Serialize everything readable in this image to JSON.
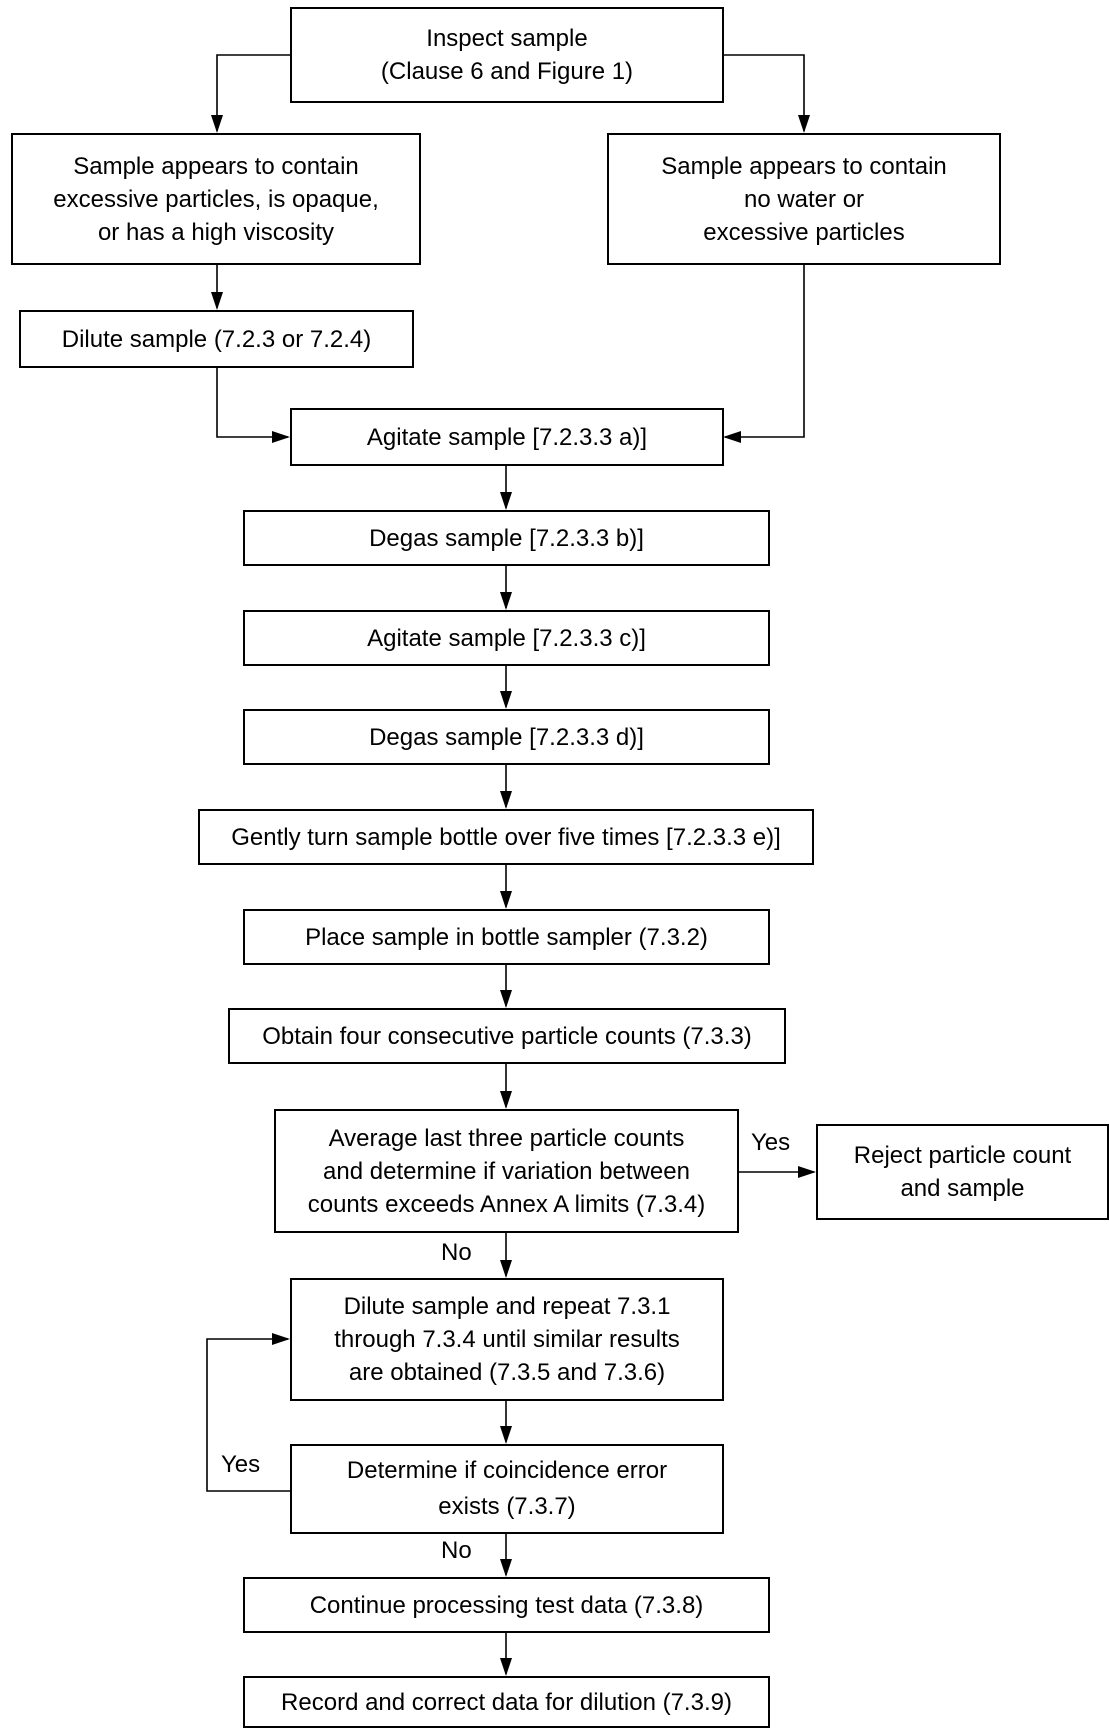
{
  "steps": {
    "inspect": [
      "Inspect sample",
      "(Clause 6 and Figure 1)"
    ],
    "excessive": [
      "Sample appears to contain",
      "excessive particles, is opaque,",
      "or has a high viscosity"
    ],
    "no_water": [
      "Sample appears to contain",
      "no water or",
      "excessive particles"
    ],
    "dilute": [
      "Dilute sample (7.2.3 or 7.2.4)"
    ],
    "agitate_a": [
      "Agitate sample [7.2.3.3 a)]"
    ],
    "degas_b": [
      "Degas sample [7.2.3.3 b)]"
    ],
    "agitate_c": [
      "Agitate sample [7.2.3.3 c)]"
    ],
    "degas_d": [
      "Degas sample [7.2.3.3 d)]"
    ],
    "turn_bottle": [
      "Gently turn sample bottle over five times [7.2.3.3 e)]"
    ],
    "place": [
      "Place sample in bottle sampler (7.3.2)"
    ],
    "obtain": [
      "Obtain four consecutive particle counts (7.3.3)"
    ],
    "average": [
      "Average last three particle counts",
      "and determine if variation between",
      "counts exceeds Annex A limits (7.3.4)"
    ],
    "reject": [
      "Reject particle count",
      "and sample"
    ],
    "dilute_repeat": [
      "Dilute sample and repeat 7.3.1",
      "through 7.3.4 until similar results",
      "are obtained (7.3.5 and 7.3.6)"
    ],
    "coincidence": [
      "Determine if coincidence error",
      "exists (7.3.7)"
    ],
    "continue": [
      "Continue processing test data (7.3.8)"
    ],
    "record": [
      "Record and correct data for dilution (7.3.9)"
    ]
  },
  "labels": {
    "yes_reject": "Yes",
    "no_average": "No",
    "yes_loop": "Yes",
    "no_coincidence": "No"
  }
}
